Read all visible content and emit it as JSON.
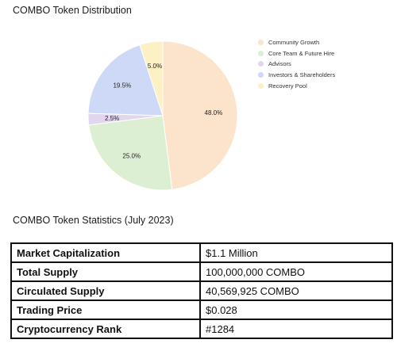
{
  "chart_data": {
    "type": "pie",
    "title": "COMBO Token Distribution",
    "slices": [
      {
        "label": "Community Growth",
        "value": 48.0,
        "display": "48.0%",
        "color": "#fce3cb"
      },
      {
        "label": "Core Team & Future Hire",
        "value": 25.0,
        "display": "25.0%",
        "color": "#dcefd3"
      },
      {
        "label": "Advisors",
        "value": 2.5,
        "display": "2.5%",
        "color": "#e2d5ee"
      },
      {
        "label": "Investors & Shareholders",
        "value": 19.5,
        "display": "19.5%",
        "color": "#cdd9f6"
      },
      {
        "label": "Recovery Pool",
        "value": 5.0,
        "display": "5.0%",
        "color": "#fcf0c5"
      }
    ],
    "legend_position": "right"
  },
  "stats": {
    "title": "COMBO Token Statistics (July 2023)",
    "rows": [
      {
        "label": "Market Capitalization",
        "value": "$1.1 Million"
      },
      {
        "label": "Total Supply",
        "value": "100,000,000 COMBO"
      },
      {
        "label": "Circulated Supply",
        "value": "40,569,925 COMBO"
      },
      {
        "label": "Trading Price",
        "value": "$0.028"
      },
      {
        "label": "Cryptocurrency Rank",
        "value": "#1284"
      }
    ]
  }
}
